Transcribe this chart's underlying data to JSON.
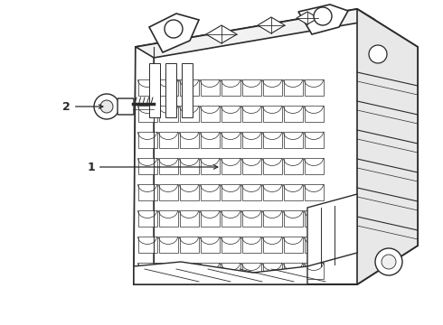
{
  "background_color": "#ffffff",
  "line_color": "#2a2a2a",
  "figsize": [
    4.9,
    3.6
  ],
  "dpi": 100,
  "label_1_text": "1",
  "label_2_text": "2"
}
